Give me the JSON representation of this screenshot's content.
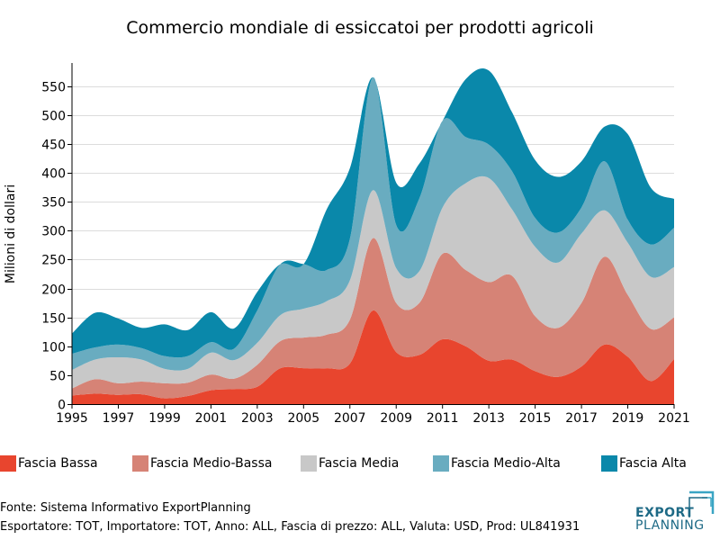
{
  "title": "Commercio mondiale di essiccatoi per prodotti agricoli",
  "footer": {
    "source": "Fonte: Sistema Informativo ExportPlanning",
    "details": "Esportatore: TOT, Importatore: TOT, Anno: ALL, Fascia di prezzo: ALL, Valuta: USD, Prod: UL841931"
  },
  "logo": {
    "line1": "EXPORT",
    "line2": "PLANNING"
  },
  "chart_data": {
    "type": "area",
    "stacked": true,
    "smooth": true,
    "title": "Commercio mondiale di essiccatoi per prodotti agricoli",
    "xlabel": "",
    "ylabel": "Milioni di dollari",
    "xlim": [
      1995,
      2021
    ],
    "ylim": [
      0,
      590
    ],
    "xticks": [
      "1995",
      "1997",
      "1999",
      "2001",
      "2003",
      "2005",
      "2007",
      "2009",
      "2011",
      "2013",
      "2015",
      "2017",
      "2019",
      "2021"
    ],
    "yticks": [
      "0",
      "50",
      "100",
      "150",
      "200",
      "250",
      "300",
      "350",
      "400",
      "450",
      "500",
      "550"
    ],
    "ytick_values": [
      0,
      50,
      100,
      150,
      200,
      250,
      300,
      350,
      400,
      450,
      500,
      550
    ],
    "grid": {
      "horizontal": true,
      "vertical": false
    },
    "legend_position": "bottom",
    "x": [
      1995,
      1996,
      1997,
      1998,
      1999,
      2000,
      2001,
      2002,
      2003,
      2004,
      2005,
      2006,
      2007,
      2008,
      2009,
      2010,
      2011,
      2012,
      2013,
      2014,
      2015,
      2016,
      2017,
      2018,
      2019,
      2020,
      2021
    ],
    "series": [
      {
        "name": "Fascia Bassa",
        "color": "#e8452e",
        "values": [
          15,
          18,
          16,
          17,
          10,
          14,
          24,
          26,
          30,
          62,
          62,
          62,
          70,
          162,
          90,
          85,
          112,
          100,
          75,
          77,
          57,
          47,
          65,
          103,
          82,
          40,
          78
        ]
      },
      {
        "name": "Fascia Medio-Bassa",
        "color": "#d68376",
        "values": [
          12,
          25,
          20,
          22,
          26,
          23,
          27,
          18,
          38,
          47,
          53,
          58,
          76,
          125,
          85,
          90,
          148,
          132,
          136,
          145,
          95,
          85,
          110,
          152,
          107,
          90,
          72
        ]
      },
      {
        "name": "Fascia Media",
        "color": "#c8c8c8",
        "values": [
          32,
          34,
          45,
          38,
          25,
          24,
          38,
          32,
          38,
          45,
          50,
          58,
          68,
          83,
          60,
          55,
          80,
          150,
          180,
          115,
          120,
          113,
          120,
          80,
          90,
          90,
          87
        ]
      },
      {
        "name": "Fascia Medio-Alta",
        "color": "#69acc0",
        "values": [
          28,
          21,
          22,
          20,
          22,
          22,
          18,
          20,
          56,
          88,
          77,
          54,
          72,
          195,
          75,
          126,
          150,
          80,
          58,
          66,
          50,
          52,
          45,
          85,
          40,
          56,
          68
        ]
      },
      {
        "name": "Fascia Alta",
        "color": "#0a88aa",
        "values": [
          35,
          60,
          45,
          35,
          55,
          45,
          52,
          35,
          32,
          0,
          0,
          105,
          122,
          0,
          73,
          60,
          0,
          100,
          128,
          102,
          100,
          96,
          80,
          60,
          148,
          98,
          50
        ]
      }
    ]
  }
}
